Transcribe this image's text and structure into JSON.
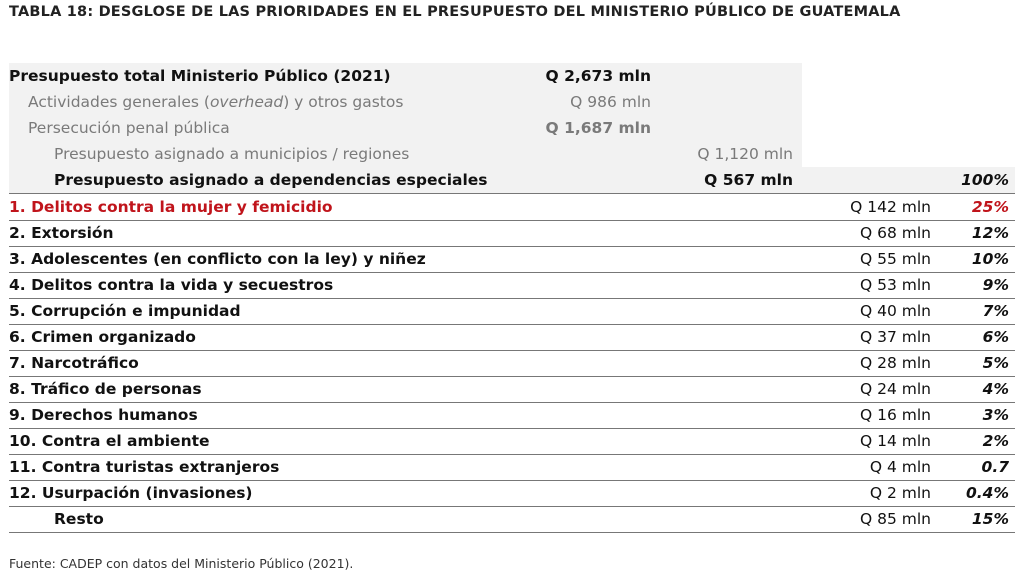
{
  "title": "TABLA 18: DESGLOSE DE LAS PRIORIDADES EN EL PRESUPUESTO DEL MINISTERIO PÚBLICO DE GUATEMALA",
  "summary": {
    "total": {
      "label": "Presupuesto total Ministerio Público (2021)",
      "value": "Q 2,673 mln"
    },
    "overhead": {
      "label_pre": "Actividades generales (",
      "label_em": "overhead",
      "label_post": ") y otros gastos",
      "value": "Q 986 mln"
    },
    "persecucion": {
      "label": "Persecución penal pública",
      "value": "Q 1,687 mln"
    },
    "municipios": {
      "label": "Presupuesto asignado a municipios / regiones",
      "value": "Q 1,120 mln"
    },
    "dependencias": {
      "label": "Presupuesto asignado a dependencias especiales",
      "value": "Q 567 mln",
      "pct": "100%"
    }
  },
  "items": [
    {
      "label": "1. Delitos contra la mujer y femicidio",
      "value": "Q 142 mln",
      "pct": "25%"
    },
    {
      "label": "2. Extorsión",
      "value": "Q 68 mln",
      "pct": "12%"
    },
    {
      "label": "3. Adolescentes (en conflicto con la ley) y niñez",
      "value": "Q 55 mln",
      "pct": "10%"
    },
    {
      "label": "4. Delitos contra la vida y secuestros",
      "value": "Q 53 mln",
      "pct": "9%"
    },
    {
      "label": "5. Corrupción e impunidad",
      "value": "Q 40 mln",
      "pct": "7%"
    },
    {
      "label": "6. Crimen organizado",
      "value": "Q 37 mln",
      "pct": "6%"
    },
    {
      "label": "7. Narcotráfico",
      "value": "Q 28 mln",
      "pct": "5%"
    },
    {
      "label": "8. Tráfico de personas",
      "value": "Q 24 mln",
      "pct": "4%"
    },
    {
      "label": "9. Derechos humanos",
      "value": "Q 16 mln",
      "pct": "3%"
    },
    {
      "label": "10. Contra el ambiente",
      "value": "Q 14 mln",
      "pct": "2%"
    },
    {
      "label": "11. Contra turistas extranjeros",
      "value": "Q 4 mln",
      "pct": "0.7"
    },
    {
      "label": "12. Usurpación (invasiones)",
      "value": "Q 2 mln",
      "pct": "0.4%"
    },
    {
      "label": "Resto",
      "value": "Q 85 mln",
      "pct": "15%"
    }
  ],
  "highlight_color": "#c0141b",
  "source": "Fuente: CADEP con datos del Ministerio Público (2021)."
}
